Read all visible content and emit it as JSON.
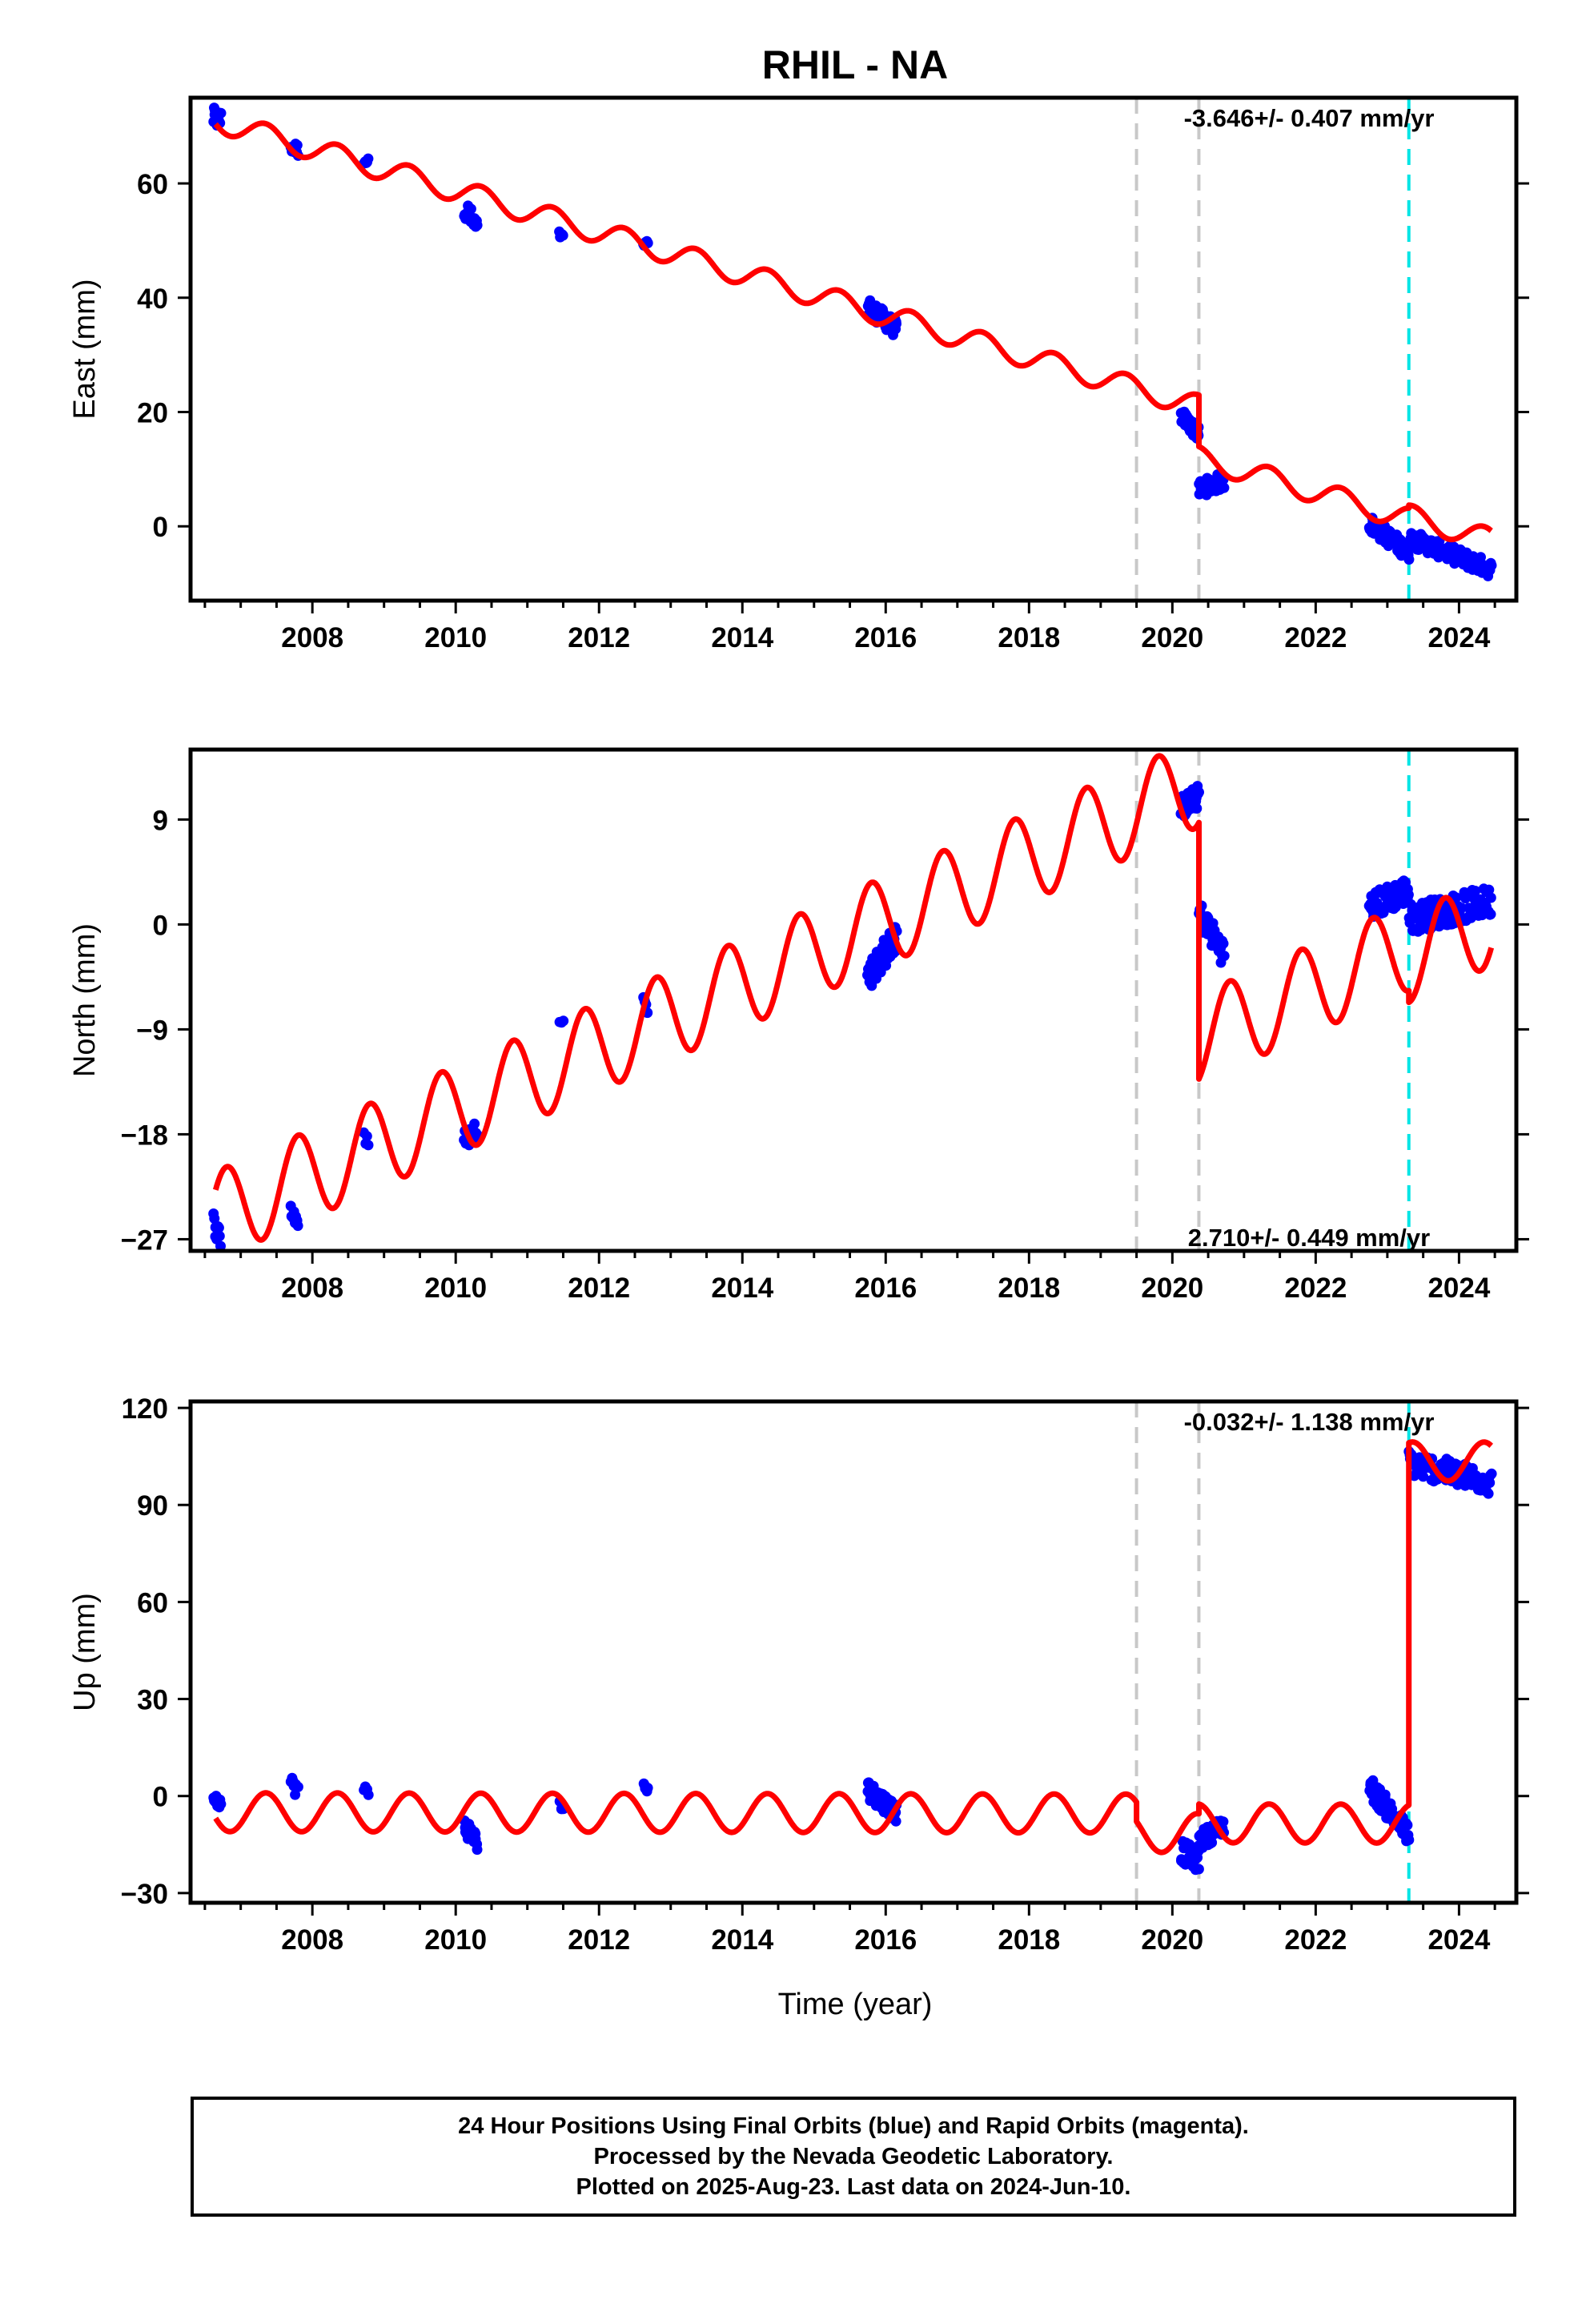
{
  "title": "RHIL - NA",
  "xlabel": "Time (year)",
  "footer": [
    "24 Hour Positions Using Final Orbits (blue) and Rapid Orbits (magenta).",
    "Processed by the Nevada Geodetic Laboratory.",
    "Plotted on 2025-Aug-23. Last data on 2024-Jun-10."
  ],
  "colors": {
    "data": "#0000ff",
    "model": "#ff0000",
    "equipment_change": "#c8c8c8",
    "earthquake": "#00e5e5"
  },
  "equipment_change_lines": [
    2019.5,
    2020.37
  ],
  "earthquake_lines": [
    2023.3
  ],
  "chart_data": [
    {
      "type": "scatter",
      "ylabel": "East (mm)",
      "rate_label": "-3.646+/- 0.407 mm/yr",
      "xlim": [
        2006.3,
        2024.8
      ],
      "ylim": [
        -13,
        75
      ],
      "xticks": [
        2008,
        2010,
        2012,
        2014,
        2016,
        2018,
        2020,
        2022,
        2024
      ],
      "yticks": [
        0,
        20,
        40,
        60
      ],
      "model": {
        "rate": -3.646,
        "annual_amp": 2.0,
        "phase": 0.1,
        "segments": [
          {
            "start": 2006.65,
            "end": 2020.37,
            "ref": 2006.65,
            "offset": 71.0
          },
          {
            "start": 2020.37,
            "end": 2023.3,
            "ref": 2006.65,
            "offset": 62.0
          },
          {
            "start": 2023.3,
            "end": 2024.45,
            "ref": 2006.65,
            "offset": 62.5
          }
        ]
      },
      "data_clusters": [
        {
          "start": 2006.62,
          "end": 2006.72,
          "y0": 71.5,
          "y1": 71.0,
          "spread": 1.8,
          "n": 14
        },
        {
          "start": 2007.7,
          "end": 2007.8,
          "y0": 66.5,
          "y1": 65.8,
          "spread": 1.2,
          "n": 10
        },
        {
          "start": 2008.72,
          "end": 2008.78,
          "y0": 64.0,
          "y1": 63.8,
          "spread": 0.6,
          "n": 5
        },
        {
          "start": 2010.12,
          "end": 2010.3,
          "y0": 56.0,
          "y1": 52.0,
          "spread": 1.8,
          "n": 22
        },
        {
          "start": 2011.45,
          "end": 2011.5,
          "y0": 51.0,
          "y1": 50.5,
          "spread": 0.6,
          "n": 5
        },
        {
          "start": 2012.62,
          "end": 2012.68,
          "y0": 49.5,
          "y1": 49.0,
          "spread": 0.8,
          "n": 5
        },
        {
          "start": 2015.75,
          "end": 2016.15,
          "y0": 38.5,
          "y1": 34.5,
          "spread": 1.6,
          "n": 55
        },
        {
          "start": 2020.12,
          "end": 2020.37,
          "y0": 19.5,
          "y1": 16.0,
          "spread": 1.3,
          "n": 30
        },
        {
          "start": 2020.37,
          "end": 2020.72,
          "y0": 6.5,
          "y1": 8.0,
          "spread": 1.5,
          "n": 36
        },
        {
          "start": 2022.75,
          "end": 2023.3,
          "y0": 0.5,
          "y1": -4.5,
          "spread": 1.6,
          "n": 55
        },
        {
          "start": 2023.3,
          "end": 2024.45,
          "y0": -2.0,
          "y1": -7.5,
          "spread": 1.5,
          "n": 110
        }
      ]
    },
    {
      "type": "scatter",
      "ylabel": "North (mm)",
      "rate_label": "2.710+/- 0.449 mm/yr",
      "xlim": [
        2006.3,
        2024.8
      ],
      "ylim": [
        -28,
        15
      ],
      "xticks": [
        2008,
        2010,
        2012,
        2014,
        2016,
        2018,
        2020,
        2022,
        2024
      ],
      "yticks": [
        -27,
        -18,
        -9,
        0,
        9
      ],
      "model": {
        "rate": 2.71,
        "annual_amp": 3.8,
        "phase": 0.55,
        "segments": [
          {
            "start": 2006.65,
            "end": 2020.37,
            "ref": 2006.65,
            "offset": -25.0
          },
          {
            "start": 2020.37,
            "end": 2023.3,
            "ref": 2006.65,
            "offset": -47.0
          },
          {
            "start": 2023.3,
            "end": 2024.45,
            "ref": 2006.65,
            "offset": -48.0
          }
        ]
      },
      "data_clusters": [
        {
          "start": 2006.62,
          "end": 2006.72,
          "y0": -25.5,
          "y1": -27.0,
          "spread": 0.9,
          "n": 10
        },
        {
          "start": 2007.7,
          "end": 2007.8,
          "y0": -24.5,
          "y1": -25.5,
          "spread": 0.8,
          "n": 8
        },
        {
          "start": 2008.72,
          "end": 2008.78,
          "y0": -18.0,
          "y1": -19.0,
          "spread": 0.6,
          "n": 4
        },
        {
          "start": 2010.12,
          "end": 2010.3,
          "y0": -18.5,
          "y1": -17.5,
          "spread": 0.9,
          "n": 15
        },
        {
          "start": 2011.45,
          "end": 2011.5,
          "y0": -8.5,
          "y1": -8.5,
          "spread": 0.3,
          "n": 3
        },
        {
          "start": 2012.62,
          "end": 2012.68,
          "y0": -5.5,
          "y1": -7.0,
          "spread": 0.8,
          "n": 6
        },
        {
          "start": 2015.75,
          "end": 2016.15,
          "y0": -4.5,
          "y1": -1.0,
          "spread": 1.3,
          "n": 55
        },
        {
          "start": 2020.12,
          "end": 2020.37,
          "y0": 10.0,
          "y1": 11.0,
          "spread": 1.0,
          "n": 30
        },
        {
          "start": 2020.37,
          "end": 2020.72,
          "y0": 1.0,
          "y1": -2.5,
          "spread": 1.2,
          "n": 36
        },
        {
          "start": 2022.75,
          "end": 2023.3,
          "y0": 1.5,
          "y1": 3.0,
          "spread": 1.2,
          "n": 55
        },
        {
          "start": 2023.3,
          "end": 2024.45,
          "y0": 0.5,
          "y1": 2.0,
          "spread": 1.3,
          "n": 110
        }
      ]
    },
    {
      "type": "scatter",
      "ylabel": "Up (mm)",
      "rate_label": "-0.032+/- 1.138 mm/yr",
      "xlim": [
        2006.3,
        2024.8
      ],
      "ylim": [
        -33,
        122
      ],
      "xticks": [
        2008,
        2010,
        2012,
        2014,
        2016,
        2018,
        2020,
        2022,
        2024
      ],
      "yticks": [
        -30,
        0,
        30,
        60,
        90,
        120
      ],
      "model": {
        "rate": -0.032,
        "annual_amp": 6.0,
        "phase": 0.1,
        "segments": [
          {
            "start": 2006.65,
            "end": 2019.5,
            "ref": 2006.65,
            "offset": -5.0
          },
          {
            "start": 2019.5,
            "end": 2020.37,
            "ref": 2006.65,
            "offset": -11.0
          },
          {
            "start": 2020.37,
            "end": 2023.3,
            "ref": 2006.65,
            "offset": -8.0
          },
          {
            "start": 2023.3,
            "end": 2024.45,
            "ref": 2006.65,
            "offset": 104.0
          }
        ]
      },
      "data_clusters": [
        {
          "start": 2006.62,
          "end": 2006.72,
          "y0": 0.0,
          "y1": -2.0,
          "spread": 2.0,
          "n": 10
        },
        {
          "start": 2007.7,
          "end": 2007.8,
          "y0": 4.0,
          "y1": 2.0,
          "spread": 2.5,
          "n": 8
        },
        {
          "start": 2008.72,
          "end": 2008.78,
          "y0": 2.0,
          "y1": 1.0,
          "spread": 1.5,
          "n": 4
        },
        {
          "start": 2010.12,
          "end": 2010.3,
          "y0": -9.0,
          "y1": -14.0,
          "spread": 3.0,
          "n": 20
        },
        {
          "start": 2011.45,
          "end": 2011.5,
          "y0": -2.0,
          "y1": -5.0,
          "spread": 1.5,
          "n": 3
        },
        {
          "start": 2012.62,
          "end": 2012.68,
          "y0": 3.0,
          "y1": 2.0,
          "spread": 1.5,
          "n": 6
        },
        {
          "start": 2015.75,
          "end": 2016.15,
          "y0": 2.0,
          "y1": -5.0,
          "spread": 3.0,
          "n": 55
        },
        {
          "start": 2020.12,
          "end": 2020.37,
          "y0": -17.0,
          "y1": -20.0,
          "spread": 3.5,
          "n": 30
        },
        {
          "start": 2020.37,
          "end": 2020.72,
          "y0": -14.0,
          "y1": -9.0,
          "spread": 3.0,
          "n": 36
        },
        {
          "start": 2022.75,
          "end": 2023.3,
          "y0": 3.0,
          "y1": -12.0,
          "spread": 3.5,
          "n": 55
        },
        {
          "start": 2023.3,
          "end": 2024.45,
          "y0": 103.0,
          "y1": 97.0,
          "spread": 4.0,
          "n": 110
        }
      ]
    }
  ]
}
